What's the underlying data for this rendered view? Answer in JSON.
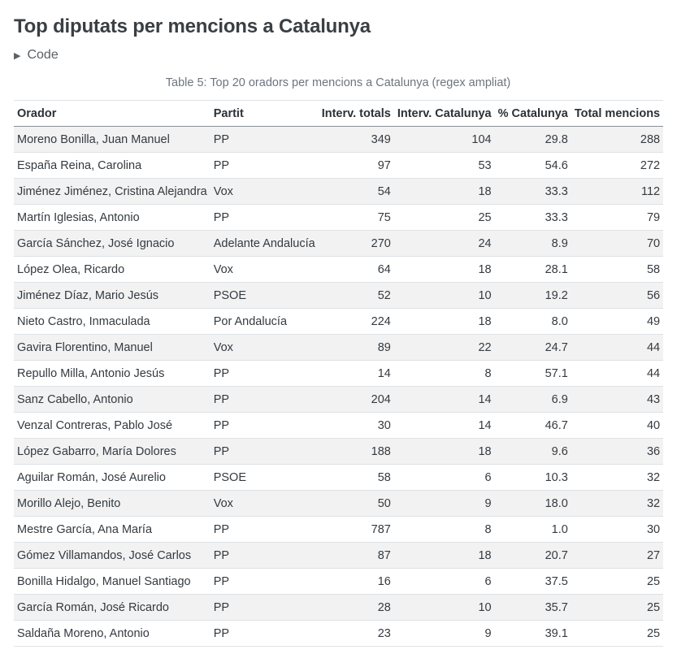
{
  "page": {
    "title": "Top diputats per mencions a Catalunya",
    "code_toggle_label": "Code",
    "caption": "Table 5: Top 20 oradors per mencions a Catalunya (regex ampliat)"
  },
  "table": {
    "headers": [
      "Orador",
      "Partit",
      "Interv. totals",
      "Interv. Catalunya",
      "% Catalunya",
      "Total mencions"
    ],
    "rows": [
      [
        "Moreno Bonilla, Juan Manuel",
        "PP",
        "349",
        "104",
        "29.8",
        "288"
      ],
      [
        "España Reina, Carolina",
        "PP",
        "97",
        "53",
        "54.6",
        "272"
      ],
      [
        "Jiménez Jiménez, Cristina Alejandra",
        "Vox",
        "54",
        "18",
        "33.3",
        "112"
      ],
      [
        "Martín Iglesias, Antonio",
        "PP",
        "75",
        "25",
        "33.3",
        "79"
      ],
      [
        "García Sánchez, José Ignacio",
        "Adelante Andalucía",
        "270",
        "24",
        "8.9",
        "70"
      ],
      [
        "López Olea, Ricardo",
        "Vox",
        "64",
        "18",
        "28.1",
        "58"
      ],
      [
        "Jiménez Díaz, Mario Jesús",
        "PSOE",
        "52",
        "10",
        "19.2",
        "56"
      ],
      [
        "Nieto Castro, Inmaculada",
        "Por Andalucía",
        "224",
        "18",
        "8.0",
        "49"
      ],
      [
        "Gavira Florentino, Manuel",
        "Vox",
        "89",
        "22",
        "24.7",
        "44"
      ],
      [
        "Repullo Milla, Antonio Jesús",
        "PP",
        "14",
        "8",
        "57.1",
        "44"
      ],
      [
        "Sanz Cabello, Antonio",
        "PP",
        "204",
        "14",
        "6.9",
        "43"
      ],
      [
        "Venzal Contreras, Pablo José",
        "PP",
        "30",
        "14",
        "46.7",
        "40"
      ],
      [
        "López Gabarro, María Dolores",
        "PP",
        "188",
        "18",
        "9.6",
        "36"
      ],
      [
        "Aguilar Román, José Aurelio",
        "PSOE",
        "58",
        "6",
        "10.3",
        "32"
      ],
      [
        "Morillo Alejo, Benito",
        "Vox",
        "50",
        "9",
        "18.0",
        "32"
      ],
      [
        "Mestre García, Ana María",
        "PP",
        "787",
        "8",
        "1.0",
        "30"
      ],
      [
        "Gómez Villamandos, José Carlos",
        "PP",
        "87",
        "18",
        "20.7",
        "27"
      ],
      [
        "Bonilla Hidalgo, Manuel Santiago",
        "PP",
        "16",
        "6",
        "37.5",
        "25"
      ],
      [
        "García Román, José Ricardo",
        "PP",
        "28",
        "10",
        "35.7",
        "25"
      ],
      [
        "Saldaña Moreno, Antonio",
        "PP",
        "23",
        "9",
        "39.1",
        "25"
      ]
    ]
  }
}
